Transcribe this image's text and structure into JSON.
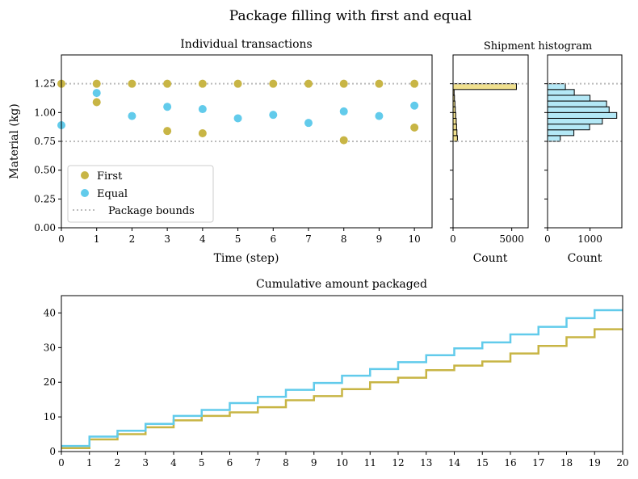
{
  "figure_title": "Package filling with first and equal",
  "colors": {
    "first": "#c8b545",
    "equal": "#62cbeb",
    "bounds": "#bbbbbb",
    "first_hist": "#f0e08e",
    "equal_hist": "#b4e8f6"
  },
  "chart_data": [
    {
      "id": "scatter",
      "type": "scatter",
      "title": "Individual transactions",
      "xlabel": "Time (step)",
      "ylabel": "Material (kg)",
      "xlim": [
        0,
        10.5
      ],
      "ylim": [
        0,
        1.5
      ],
      "xticks": [
        "0",
        "1",
        "2",
        "3",
        "4",
        "5",
        "6",
        "7",
        "8",
        "9",
        "10"
      ],
      "yticks": [
        "0.00",
        "0.25",
        "0.50",
        "0.75",
        "1.00",
        "1.25"
      ],
      "legend_position": "lower-left",
      "series": [
        {
          "name": "First",
          "points": [
            [
              0,
              1.25
            ],
            [
              1,
              1.25
            ],
            [
              1,
              1.09
            ],
            [
              2,
              1.25
            ],
            [
              3,
              1.25
            ],
            [
              3,
              0.84
            ],
            [
              4,
              1.25
            ],
            [
              4,
              0.82
            ],
            [
              5,
              1.25
            ],
            [
              6,
              1.25
            ],
            [
              7,
              1.25
            ],
            [
              8,
              1.25
            ],
            [
              8,
              0.76
            ],
            [
              9,
              1.25
            ],
            [
              10,
              1.25
            ],
            [
              10,
              0.87
            ]
          ]
        },
        {
          "name": "Equal",
          "points": [
            [
              0,
              0.89
            ],
            [
              1,
              1.17
            ],
            [
              2,
              0.97
            ],
            [
              3,
              1.05
            ],
            [
              4,
              1.03
            ],
            [
              5,
              0.95
            ],
            [
              6,
              0.98
            ],
            [
              7,
              0.91
            ],
            [
              8,
              1.01
            ],
            [
              9,
              0.97
            ],
            [
              10,
              1.06
            ]
          ]
        }
      ],
      "bounds": {
        "name": "Package bounds",
        "lower": 0.75,
        "upper": 1.25
      }
    },
    {
      "id": "hist_first",
      "type": "bar",
      "title": "Shipment histogram",
      "xlabel": "Count",
      "xlim": [
        0,
        6400
      ],
      "ylim": [
        0,
        1.5
      ],
      "xticks": [
        "0",
        "5000"
      ],
      "bin_width": 0.05,
      "bins": [
        {
          "y": 0.75,
          "count": 370
        },
        {
          "y": 0.8,
          "count": 330
        },
        {
          "y": 0.85,
          "count": 300
        },
        {
          "y": 0.9,
          "count": 270
        },
        {
          "y": 0.95,
          "count": 230
        },
        {
          "y": 1.0,
          "count": 190
        },
        {
          "y": 1.05,
          "count": 160
        },
        {
          "y": 1.1,
          "count": 120
        },
        {
          "y": 1.15,
          "count": 90
        },
        {
          "y": 1.2,
          "count": 5400
        }
      ]
    },
    {
      "id": "hist_equal",
      "type": "bar",
      "title": "",
      "xlabel": "Count",
      "xlim": [
        0,
        1750
      ],
      "ylim": [
        0,
        1.5
      ],
      "xticks": [
        "0",
        "1000"
      ],
      "bin_width": 0.05,
      "bins": [
        {
          "y": 0.75,
          "count": 300
        },
        {
          "y": 0.8,
          "count": 620
        },
        {
          "y": 0.85,
          "count": 990
        },
        {
          "y": 0.9,
          "count": 1290
        },
        {
          "y": 0.95,
          "count": 1630
        },
        {
          "y": 1.0,
          "count": 1450
        },
        {
          "y": 1.05,
          "count": 1390
        },
        {
          "y": 1.1,
          "count": 1000
        },
        {
          "y": 1.15,
          "count": 630
        },
        {
          "y": 1.2,
          "count": 420
        }
      ]
    },
    {
      "id": "cumulative",
      "type": "line",
      "title": "Cumulative amount packaged",
      "xlim": [
        0,
        20
      ],
      "ylim": [
        0,
        45
      ],
      "xticks": [
        "0",
        "1",
        "2",
        "3",
        "4",
        "5",
        "6",
        "7",
        "8",
        "9",
        "10",
        "11",
        "12",
        "13",
        "14",
        "15",
        "16",
        "17",
        "18",
        "19",
        "20"
      ],
      "yticks": [
        "0",
        "10",
        "20",
        "30",
        "40"
      ],
      "series": [
        {
          "name": "First",
          "x": [
            0,
            1,
            2,
            3,
            4,
            5,
            6,
            7,
            8,
            9,
            10,
            11,
            12,
            13,
            14,
            15,
            16,
            17,
            18,
            19,
            20
          ],
          "values": [
            1.0,
            3.5,
            5.0,
            7.0,
            9.0,
            10.3,
            11.3,
            12.8,
            14.8,
            16.0,
            18.0,
            20.0,
            21.3,
            23.5,
            24.8,
            26.0,
            28.3,
            30.5,
            33.0,
            35.3,
            35.3
          ]
        },
        {
          "name": "Equal",
          "x": [
            0,
            1,
            2,
            3,
            4,
            5,
            6,
            7,
            8,
            9,
            10,
            11,
            12,
            13,
            14,
            15,
            16,
            17,
            18,
            19,
            20
          ],
          "values": [
            1.6,
            4.3,
            6.0,
            8.0,
            10.3,
            12.0,
            14.0,
            15.8,
            17.8,
            19.8,
            21.9,
            23.8,
            25.8,
            27.8,
            29.8,
            31.5,
            33.8,
            36.0,
            38.5,
            40.8,
            40.8
          ]
        }
      ]
    }
  ]
}
